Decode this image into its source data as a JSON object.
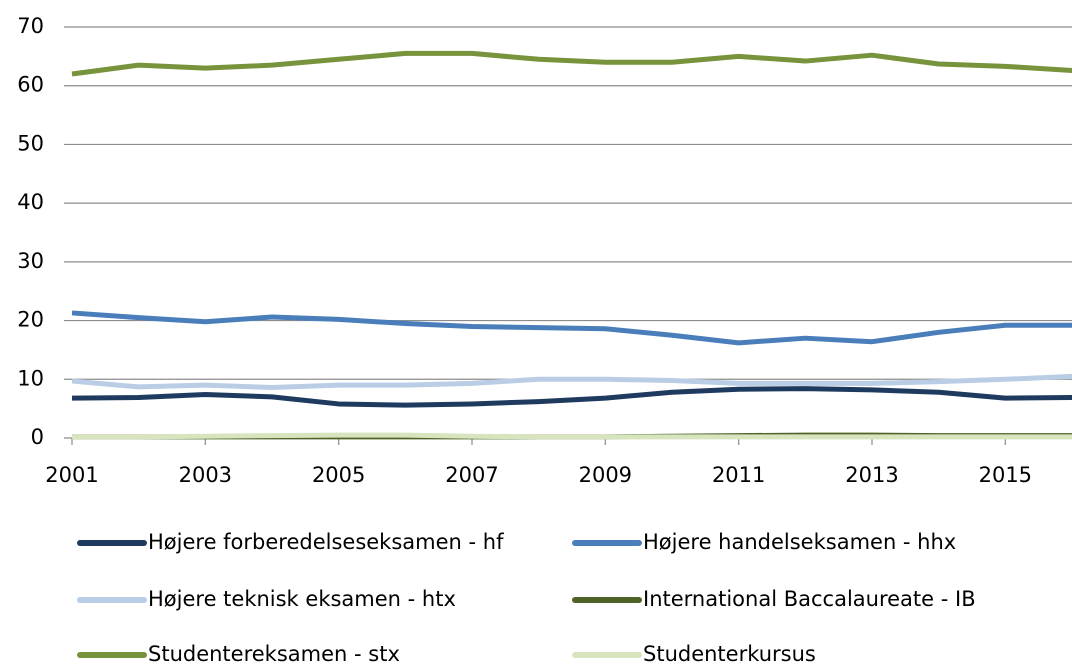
{
  "chart_data": {
    "type": "line",
    "x": [
      2001,
      2002,
      2003,
      2004,
      2005,
      2006,
      2007,
      2008,
      2009,
      2010,
      2011,
      2012,
      2013,
      2014,
      2015,
      2016
    ],
    "xlim": [
      2001,
      2016
    ],
    "xticks": [
      2001,
      2003,
      2005,
      2007,
      2009,
      2011,
      2013,
      2015
    ],
    "ylim": [
      0,
      70
    ],
    "yticks": [
      0,
      10,
      20,
      30,
      40,
      50,
      60,
      70
    ],
    "grid": true,
    "legend": "bottom",
    "series": [
      {
        "name": "Højere forberedelseseksamen - hf",
        "color": "#1f3a5f",
        "values": [
          6.8,
          6.9,
          7.4,
          7.0,
          5.8,
          5.6,
          5.8,
          6.2,
          6.8,
          7.8,
          8.3,
          8.4,
          8.2,
          7.8,
          6.8,
          6.9
        ]
      },
      {
        "name": "Højere handelseksamen - hhx",
        "color": "#4a7ebb",
        "values": [
          21.3,
          20.5,
          19.8,
          20.6,
          20.2,
          19.5,
          19.0,
          18.8,
          18.6,
          17.5,
          16.2,
          17.0,
          16.4,
          18.0,
          19.2,
          19.2
        ]
      },
      {
        "name": "Højere teknisk eksamen - htx",
        "color": "#b9cde5",
        "values": [
          9.7,
          8.7,
          9.0,
          8.6,
          9.0,
          9.0,
          9.3,
          10.0,
          10.0,
          9.8,
          9.3,
          9.3,
          9.3,
          9.6,
          10.0,
          10.5
        ]
      },
      {
        "name": "International Baccalaureate - IB",
        "color": "#4f6228",
        "values": [
          0.2,
          0.2,
          0.2,
          0.2,
          0.2,
          0.2,
          0.2,
          0.2,
          0.2,
          0.3,
          0.4,
          0.5,
          0.5,
          0.4,
          0.4,
          0.4
        ]
      },
      {
        "name": "Studentereksamen - stx",
        "color": "#77933c",
        "values": [
          62.0,
          63.5,
          63.0,
          63.5,
          64.5,
          65.5,
          65.5,
          64.5,
          64.0,
          64.0,
          65.0,
          64.2,
          65.2,
          63.7,
          63.3,
          62.6
        ]
      },
      {
        "name": "Studenterkursus",
        "color": "#d7e4bd",
        "values": [
          0.2,
          0.2,
          0.3,
          0.4,
          0.5,
          0.5,
          0.3,
          0.2,
          0.2,
          0.2,
          0.2,
          0.2,
          0.2,
          0.2,
          0.2,
          0.2
        ]
      }
    ]
  }
}
